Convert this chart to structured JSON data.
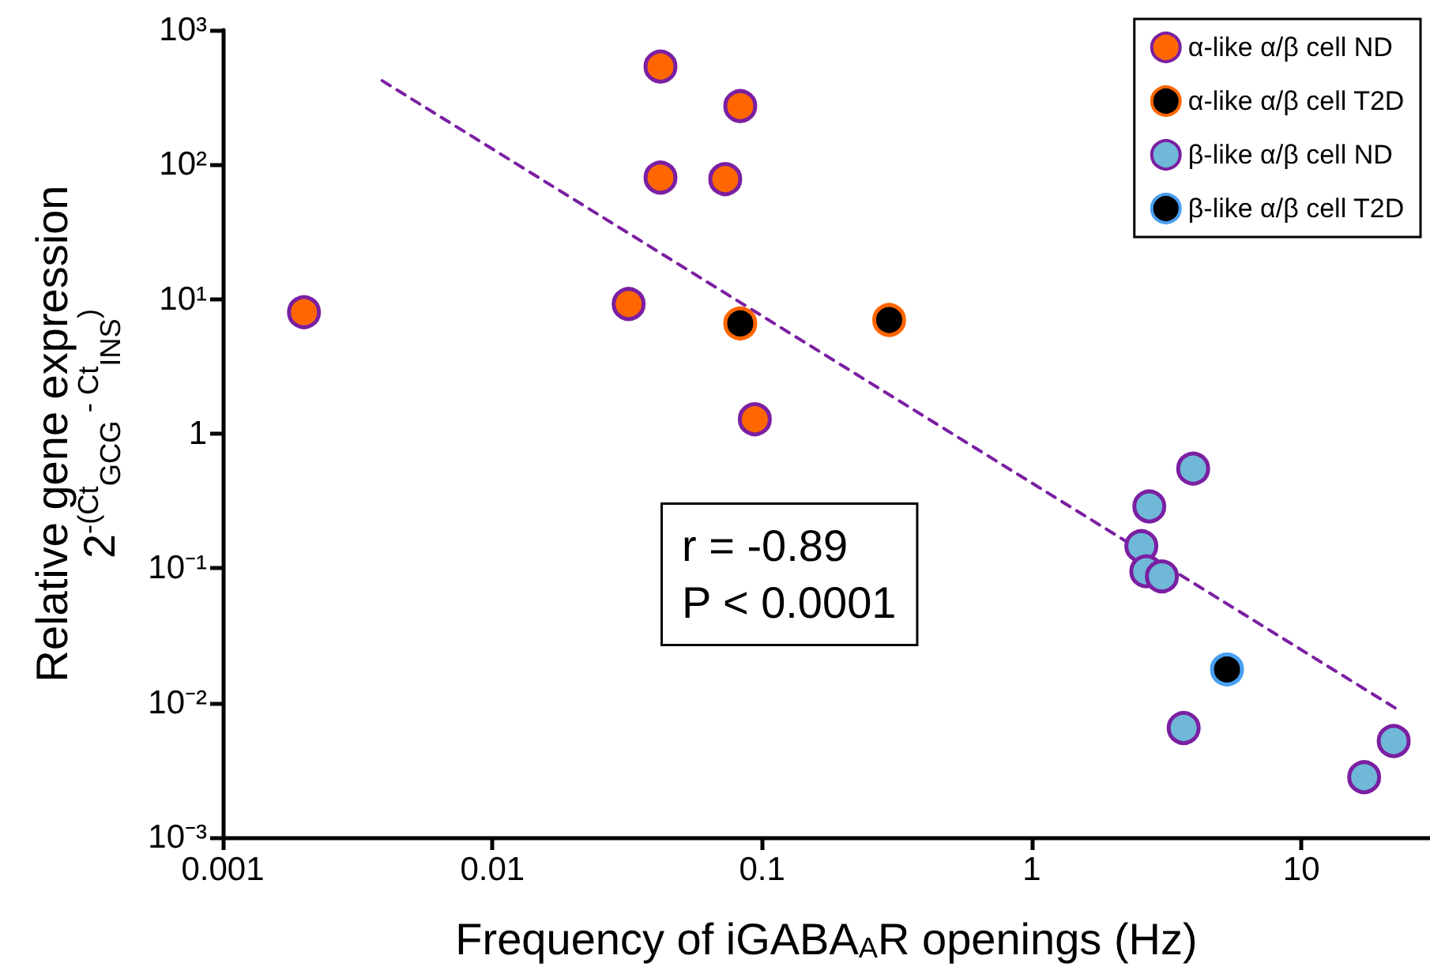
{
  "chart_data": {
    "type": "scatter",
    "xlabel": "Frequency of iGABA$_{A}$R openings (Hz)",
    "ylabel": "Relative gene expression\n2$^{-(Ct}$$_{GCG}$$^{ - Ct}$$_{INS}$$^{)}$",
    "log": "xy",
    "xlim": [
      0.001,
      30
    ],
    "xticks": [
      0.001,
      0.01,
      0.1,
      1,
      10
    ],
    "ylim": [
      0.001,
      1000
    ],
    "yticks": [
      {
        "value": 0.001,
        "label": "10⁻³"
      },
      {
        "value": 0.01,
        "label": "10⁻²"
      },
      {
        "value": 0.1,
        "label": "10⁻¹"
      },
      1,
      {
        "value": 10,
        "label": "10¹"
      },
      {
        "value": 100,
        "label": "10²"
      },
      {
        "value": 1000,
        "label": "10³"
      }
    ],
    "grid": false,
    "legend": "top right",
    "marker": "circle",
    "annotations": [
      "r = -0.89\nP < 0.0001"
    ],
    "series": [
      {
        "name": "α-like α/β cell ND",
        "color": "#ff6600",
        "x": [
          0.002,
          0.032,
          0.042,
          0.083,
          0.042,
          0.073,
          0.094
        ],
        "values": [
          8.0,
          9.2,
          535,
          272,
          80,
          78,
          1.28
        ]
      },
      {
        "name": "α-like α/β cell T2D",
        "color": "#000000",
        "x": [
          0.083,
          0.296
        ],
        "values": [
          6.6,
          7.0
        ]
      },
      {
        "name": "β-like α/β cell ND",
        "color": "#6fb8d8",
        "x": [
          3.97,
          2.73,
          2.55,
          2.66,
          3.04,
          3.66,
          17.1,
          22.0
        ],
        "values": [
          0.55,
          0.288,
          0.146,
          0.095,
          0.087,
          0.0065,
          0.0028,
          0.0052
        ]
      },
      {
        "name": "β-like α/β cell T2D",
        "color": "#000000",
        "x": [
          5.3
        ],
        "values": [
          0.0177
        ]
      },
      {
        "type": "line",
        "color": "#7b1fa2",
        "line_style": "dashed",
        "marker": "none",
        "x": [
          0.0039,
          22.6
        ],
        "values": [
          420,
          0.009
        ]
      }
    ]
  }
}
